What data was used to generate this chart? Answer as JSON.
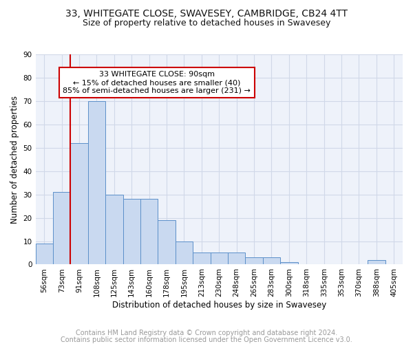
{
  "title": "33, WHITEGATE CLOSE, SWAVESEY, CAMBRIDGE, CB24 4TT",
  "subtitle": "Size of property relative to detached houses in Swavesey",
  "xlabel": "Distribution of detached houses by size in Swavesey",
  "ylabel": "Number of detached properties",
  "bin_labels": [
    "56sqm",
    "73sqm",
    "91sqm",
    "108sqm",
    "125sqm",
    "143sqm",
    "160sqm",
    "178sqm",
    "195sqm",
    "213sqm",
    "230sqm",
    "248sqm",
    "265sqm",
    "283sqm",
    "300sqm",
    "318sqm",
    "335sqm",
    "353sqm",
    "370sqm",
    "388sqm",
    "405sqm"
  ],
  "bar_values": [
    9,
    31,
    52,
    70,
    30,
    28,
    28,
    19,
    10,
    5,
    5,
    5,
    3,
    3,
    1,
    0,
    0,
    0,
    0,
    2,
    0
  ],
  "bar_color": "#c9d9f0",
  "bar_edge_color": "#5b8fc9",
  "vline_bin_index": 2,
  "vline_color": "#cc0000",
  "annotation_text": "33 WHITEGATE CLOSE: 90sqm\n← 15% of detached houses are smaller (40)\n85% of semi-detached houses are larger (231) →",
  "annotation_box_color": "#ffffff",
  "annotation_box_edge_color": "#cc0000",
  "ylim": [
    0,
    90
  ],
  "yticks": [
    0,
    10,
    20,
    30,
    40,
    50,
    60,
    70,
    80,
    90
  ],
  "grid_color": "#d0d8e8",
  "background_color": "#eef2fa",
  "footer_line1": "Contains HM Land Registry data © Crown copyright and database right 2024.",
  "footer_line2": "Contains public sector information licensed under the Open Government Licence v3.0.",
  "title_fontsize": 10,
  "subtitle_fontsize": 9,
  "xlabel_fontsize": 8.5,
  "ylabel_fontsize": 8.5,
  "tick_fontsize": 7.5,
  "annotation_fontsize": 8,
  "footer_fontsize": 7
}
